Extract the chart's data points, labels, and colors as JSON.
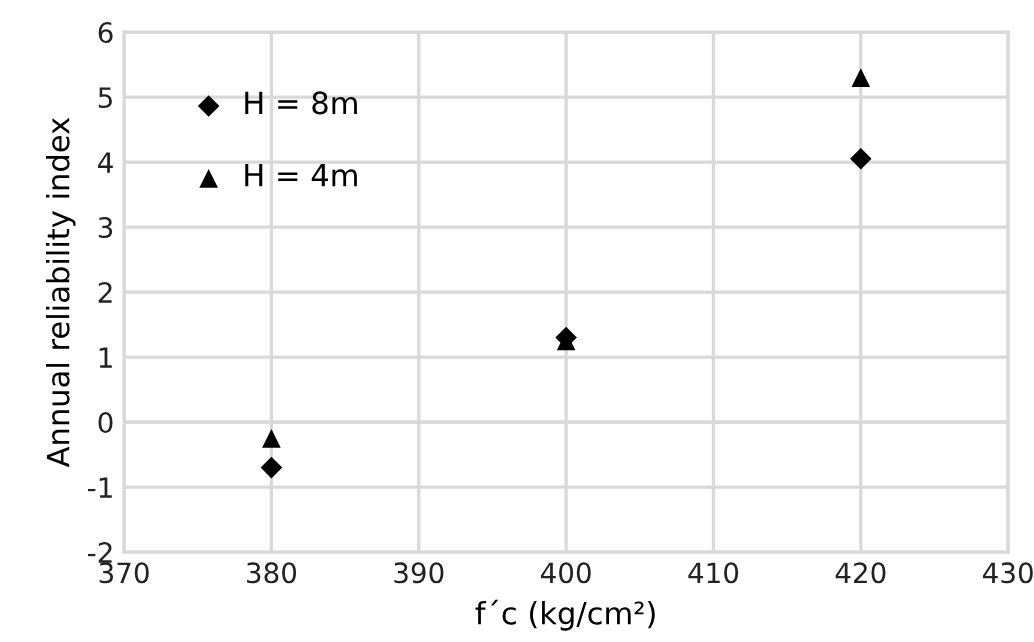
{
  "chart_data": {
    "type": "scatter",
    "xlabel": "f´c (kg/cm²)",
    "ylabel": "Annual reliability index",
    "series": [
      {
        "name": "H = 8m",
        "color": "#000000",
        "marker": "diamond",
        "x": [
          380,
          400,
          420
        ],
        "values": [
          -0.7,
          1.3,
          4.05
        ]
      },
      {
        "name": "H = 4m",
        "color": "#000000",
        "marker": "triangle",
        "x": [
          380,
          400,
          420
        ],
        "values": [
          -0.25,
          1.25,
          5.3
        ]
      }
    ],
    "xlim": [
      370,
      430
    ],
    "xticks": [
      370,
      380,
      390,
      400,
      410,
      420,
      430
    ],
    "ylim": [
      -2,
      6
    ],
    "yticks": [
      -2,
      -1,
      0,
      1,
      2,
      3,
      4,
      5,
      6
    ],
    "grid": true,
    "legend": "top left"
  }
}
